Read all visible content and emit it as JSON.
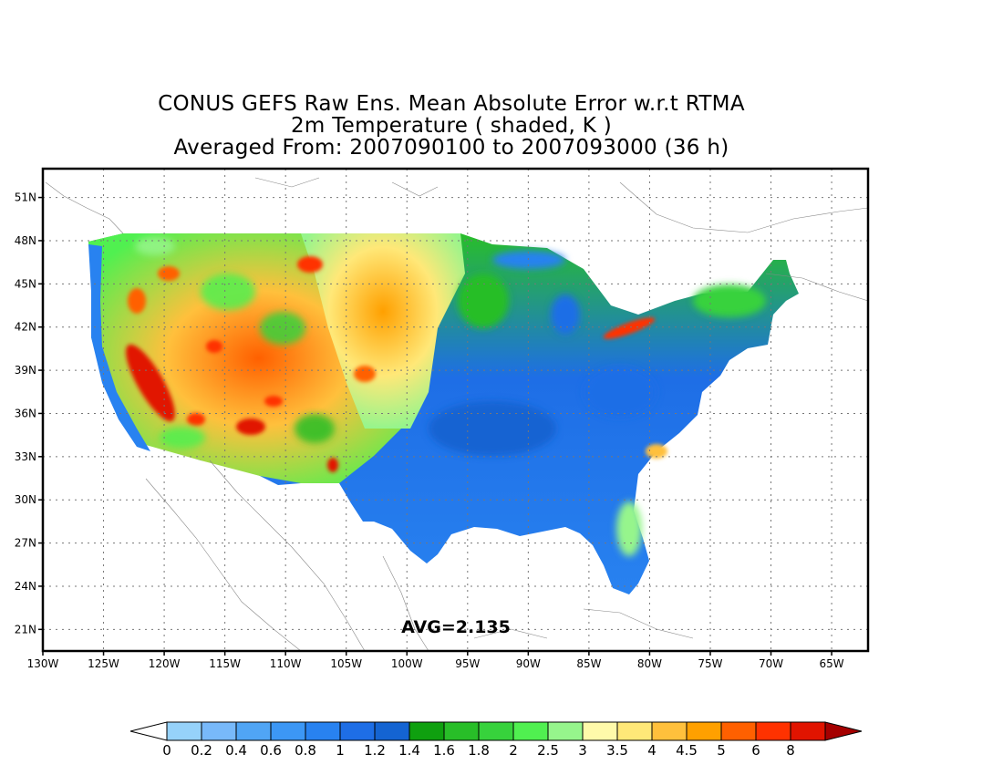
{
  "title": {
    "line1": "CONUS GEFS Raw Ens. Mean Absolute Error w.r.t RTMA",
    "line2": "2m Temperature ( shaded, K )",
    "line3": "Averaged From: 2007090100 to 2007093000 (36 h)"
  },
  "average": "AVG=2.135",
  "axes": {
    "lon_labels": [
      "130W",
      "125W",
      "120W",
      "115W",
      "110W",
      "105W",
      "100W",
      "95W",
      "90W",
      "85W",
      "80W",
      "75W",
      "70W",
      "65W"
    ],
    "lat_labels": [
      "51N",
      "48N",
      "45N",
      "42N",
      "39N",
      "36N",
      "33N",
      "30N",
      "27N",
      "24N",
      "21N"
    ],
    "lon_range": [
      -130,
      -62
    ],
    "lat_range": [
      19.5,
      53
    ],
    "grid": "dotted"
  },
  "colorbar": {
    "labels": [
      "0",
      "0.2",
      "0.4",
      "0.6",
      "0.8",
      "1",
      "1.2",
      "1.4",
      "1.6",
      "1.8",
      "2",
      "2.5",
      "3",
      "3.5",
      "4",
      "4.5",
      "5",
      "6",
      "8"
    ],
    "colors": [
      "#96d2fa",
      "#78b9fa",
      "#50a5f5",
      "#3c97f5",
      "#2882f0",
      "#1e6ee6",
      "#1464d2",
      "#0fa00f",
      "#28be28",
      "#37d23c",
      "#50f050",
      "#96f58c",
      "#fffaaa",
      "#ffe878",
      "#ffc03c",
      "#ffa000",
      "#ff6000",
      "#ff3200",
      "#e11400"
    ],
    "over_color": "#a50000",
    "under_color": "#ffffff"
  }
}
